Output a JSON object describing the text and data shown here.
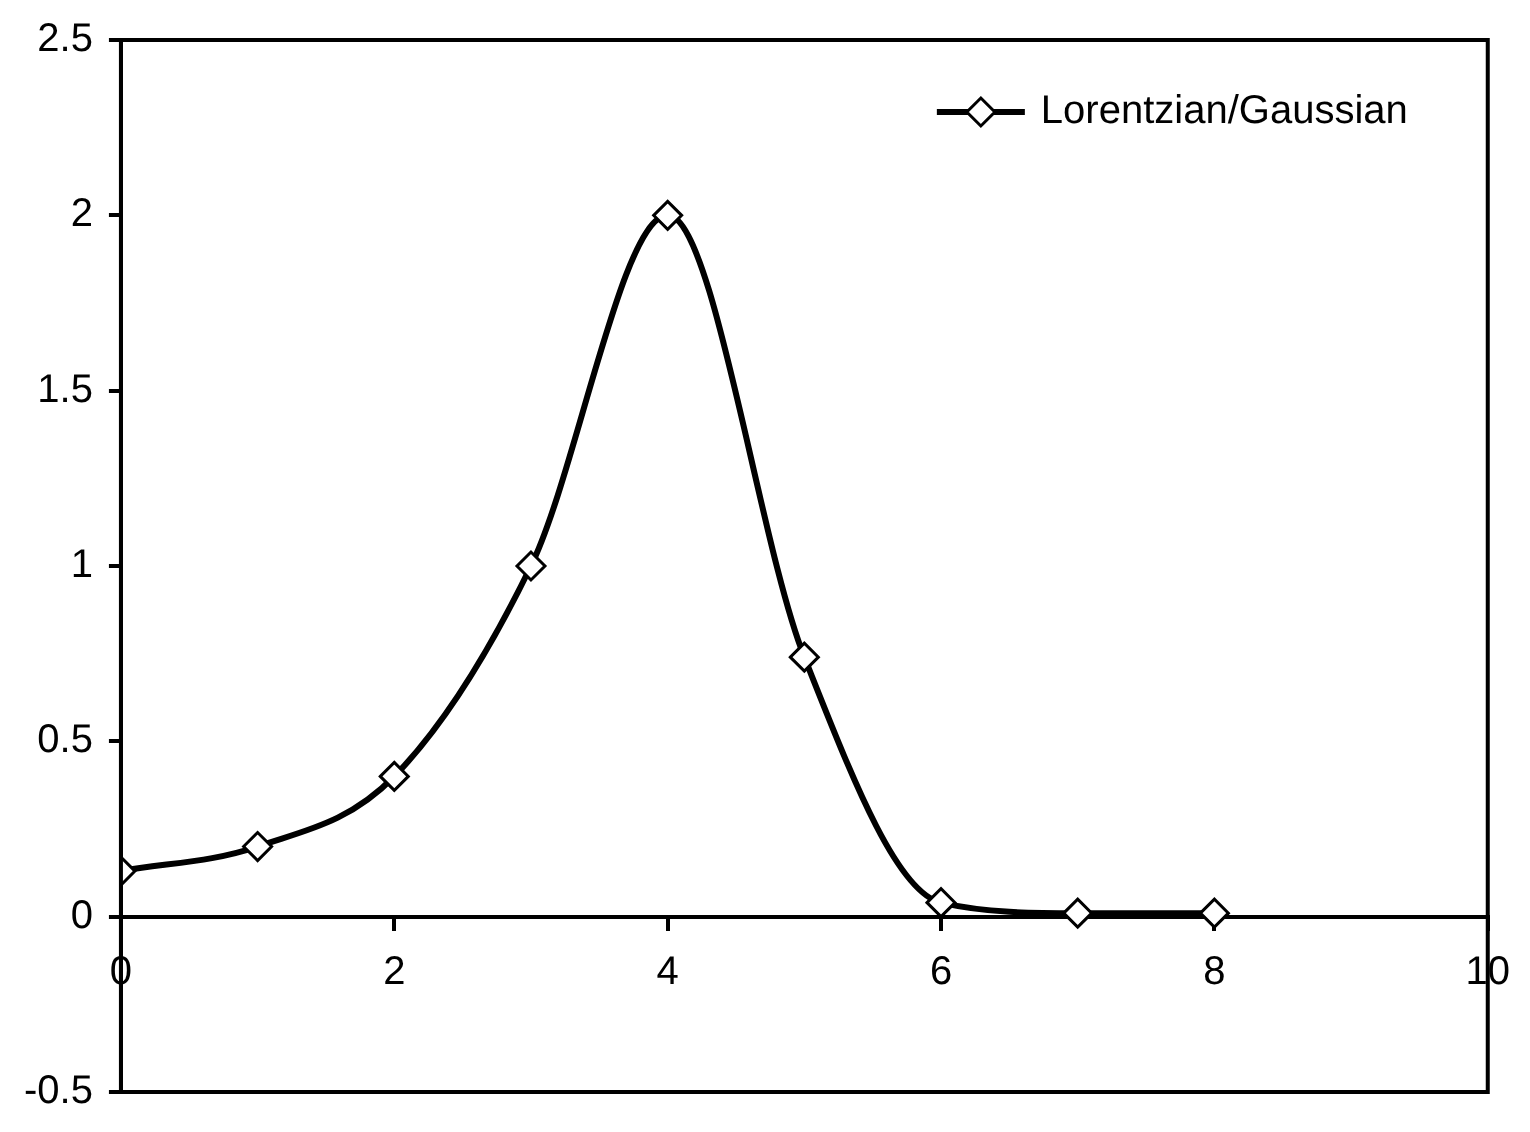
{
  "chart_data": {
    "type": "line",
    "x": [
      0,
      1,
      2,
      3,
      4,
      5,
      6,
      7,
      8
    ],
    "series": [
      {
        "name": "Lorentzian/Gaussian",
        "color": "#000000",
        "values": [
          0.13,
          0.2,
          0.4,
          1,
          2,
          0.74,
          0.04,
          0.01,
          0.01
        ]
      }
    ],
    "xlim": [
      0,
      10
    ],
    "xticks": [
      0,
      2,
      4,
      6,
      8,
      10
    ],
    "ylim": [
      -0.5,
      2.5
    ],
    "yticks": [
      -0.5,
      0,
      0.5,
      1,
      1.5,
      2,
      2.5
    ],
    "grid": false,
    "legend": "top right",
    "marker": "diamond",
    "line_style": "solid"
  }
}
